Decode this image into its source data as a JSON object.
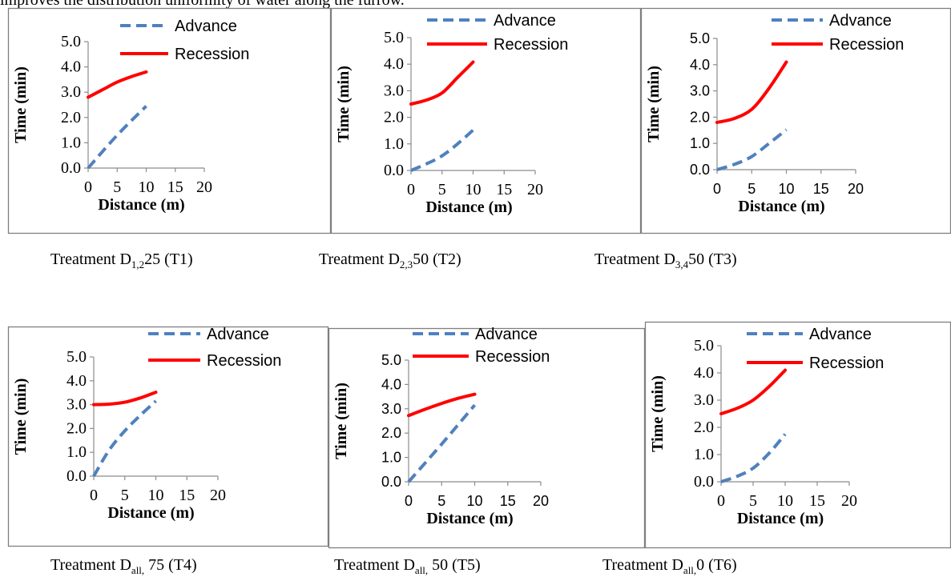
{
  "top_text": "improves the distribution uniformity of water along the furrow.",
  "captions": [
    {
      "prefix": "Treatment D",
      "sub": "1,2",
      "suffix": "25 (T1)"
    },
    {
      "prefix": "Treatment D",
      "sub": "2,3",
      "suffix": "50 (T2)"
    },
    {
      "prefix": "Treatment D",
      "sub": "3,4",
      "suffix": "50 (T3)"
    },
    {
      "prefix": "Treatment D",
      "sub": "all,",
      "suffix": " 75 (T4)"
    },
    {
      "prefix": "Treatment D",
      "sub": "all,",
      "suffix": " 50 (T5)"
    },
    {
      "prefix": "Treatment D",
      "sub": "all,",
      "suffix": "0 (T6)"
    }
  ],
  "colors": {
    "advance": "#4f81bd",
    "recession": "#ff0000",
    "frame": "#7f7f7f"
  },
  "chart_data": [
    {
      "type": "line",
      "xlabel": "Distance (m)",
      "ylabel": "Time (min)",
      "xticks": [
        "0",
        "5",
        "10",
        "15",
        "20"
      ],
      "yticks": [
        "0.0",
        "1.0",
        "2.0",
        "3.0",
        "4.0",
        "5.0"
      ],
      "xlim": [
        0,
        20
      ],
      "ylim": [
        0,
        5
      ],
      "legend_position": "top",
      "series": [
        {
          "name": "Advance",
          "x": [
            0,
            5,
            10
          ],
          "y": [
            0.0,
            1.3,
            2.45
          ]
        },
        {
          "name": "Recession",
          "x": [
            0,
            2.5,
            5,
            7.5,
            10
          ],
          "y": [
            2.8,
            3.1,
            3.4,
            3.62,
            3.8
          ]
        }
      ]
    },
    {
      "type": "line",
      "xlabel": "Distance (m)",
      "ylabel": "Time (min)",
      "xticks": [
        "0",
        "5",
        "10",
        "15",
        "20"
      ],
      "yticks": [
        "0.0",
        "1.0",
        "2.0",
        "3.0",
        "4.0",
        "5.0"
      ],
      "xlim": [
        0,
        20
      ],
      "ylim": [
        0,
        5
      ],
      "legend_position": "top",
      "series": [
        {
          "name": "Advance",
          "x": [
            0,
            2.5,
            5,
            7.5,
            10
          ],
          "y": [
            0.0,
            0.25,
            0.55,
            1.0,
            1.52
          ]
        },
        {
          "name": "Recession",
          "x": [
            0,
            2.5,
            5,
            7.5,
            10
          ],
          "y": [
            2.5,
            2.65,
            2.92,
            3.5,
            4.08
          ]
        }
      ]
    },
    {
      "type": "line",
      "xlabel": "Distance (m)",
      "ylabel": "Time (min)",
      "xticks": [
        "0",
        "5",
        "10",
        "15",
        "20"
      ],
      "yticks": [
        "0.0",
        "1.0",
        "2.0",
        "3.0",
        "4.0",
        "5.0"
      ],
      "xlim": [
        0,
        20
      ],
      "ylim": [
        0,
        5
      ],
      "legend_position": "top",
      "series": [
        {
          "name": "Advance",
          "x": [
            0,
            2.5,
            5,
            7.5,
            10
          ],
          "y": [
            0.0,
            0.2,
            0.5,
            1.0,
            1.52
          ]
        },
        {
          "name": "Recession",
          "x": [
            0,
            2.5,
            5,
            7.5,
            10
          ],
          "y": [
            1.8,
            1.95,
            2.3,
            3.1,
            4.1
          ]
        }
      ]
    },
    {
      "type": "line",
      "xlabel": "Distance (m)",
      "ylabel": "Time (min)",
      "xticks": [
        "0",
        "5",
        "10",
        "15",
        "20"
      ],
      "yticks": [
        "0.0",
        "1.0",
        "2.0",
        "3.0",
        "4.0",
        "5.0"
      ],
      "xlim": [
        0,
        20
      ],
      "ylim": [
        0,
        5
      ],
      "legend_position": "top",
      "series": [
        {
          "name": "Advance",
          "x": [
            0,
            2.5,
            5,
            7.5,
            10
          ],
          "y": [
            0.0,
            1.1,
            1.9,
            2.55,
            3.15
          ]
        },
        {
          "name": "Recession",
          "x": [
            0,
            2.5,
            5,
            7.5,
            10
          ],
          "y": [
            3.0,
            3.02,
            3.1,
            3.28,
            3.52
          ]
        }
      ]
    },
    {
      "type": "line",
      "xlabel": "Distance (m)",
      "ylabel": "Time (min)",
      "xticks": [
        "0",
        "5",
        "10",
        "15",
        "20"
      ],
      "yticks": [
        "0.0",
        "1.0",
        "2.0",
        "3.0",
        "4.0",
        "5.0"
      ],
      "xlim": [
        0,
        20
      ],
      "ylim": [
        0,
        5
      ],
      "legend_position": "top",
      "series": [
        {
          "name": "Advance",
          "x": [
            0,
            5,
            10
          ],
          "y": [
            0.0,
            1.55,
            3.15
          ]
        },
        {
          "name": "Recession",
          "x": [
            0,
            2.5,
            5,
            7.5,
            10
          ],
          "y": [
            2.72,
            2.98,
            3.22,
            3.43,
            3.6
          ]
        }
      ]
    },
    {
      "type": "line",
      "xlabel": "Distance (m)",
      "ylabel": "Time (min)",
      "xticks": [
        "0",
        "5",
        "10",
        "15",
        "20"
      ],
      "yticks": [
        "0.0",
        "1.0",
        "2.0",
        "3.0",
        "4.0",
        "5.0"
      ],
      "xlim": [
        0,
        20
      ],
      "ylim": [
        0,
        5
      ],
      "legend_position": "top",
      "series": [
        {
          "name": "Advance",
          "x": [
            0,
            2.5,
            5,
            7.5,
            10
          ],
          "y": [
            0.0,
            0.2,
            0.5,
            1.05,
            1.75
          ]
        },
        {
          "name": "Recession",
          "x": [
            0,
            2.5,
            5,
            7.5,
            10
          ],
          "y": [
            2.5,
            2.7,
            3.0,
            3.5,
            4.1
          ]
        }
      ]
    }
  ]
}
